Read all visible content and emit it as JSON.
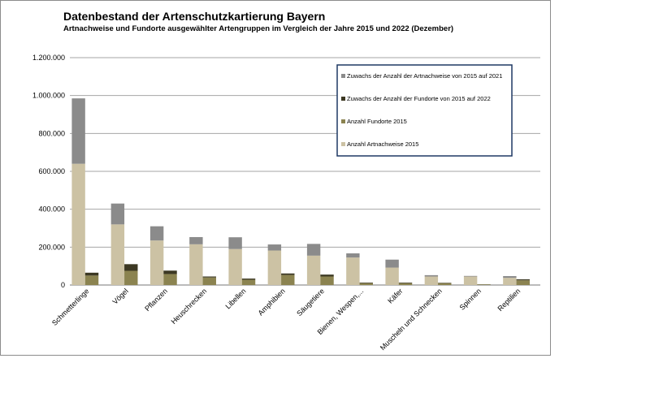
{
  "chart_data": {
    "type": "bar",
    "stacked": true,
    "title": "Datenbestand der Artenschutzkartierung Bayern",
    "subtitle": "Artnachweise und Fundorte ausgewählter Artengruppen im Vergleich der Jahre 2015 und 2022 (Dezember)",
    "xlabel": "",
    "ylabel": "",
    "ylim": [
      0,
      1200000
    ],
    "yticks": [
      "0",
      "200.000",
      "400.000",
      "600.000",
      "800.000",
      "1.000.000",
      "1.200.000"
    ],
    "ytick_values": [
      0,
      200000,
      400000,
      600000,
      800000,
      1000000,
      1200000
    ],
    "grid": true,
    "legend_position": "top-right",
    "categories": [
      "Schmetterlinge",
      "Vögel",
      "Pflanzen",
      "Heuschrecken",
      "Libellen",
      "Amphibien",
      "Säugetiere",
      "Bienen, Wespen,...",
      "Käfer",
      "Muscheln und Schnecken",
      "Spinnen",
      "Reptilien"
    ],
    "groups": [
      {
        "key": "artnachweise",
        "series": [
          {
            "name": "Anzahl Artnachweise 2015",
            "color": "#ccc2a4",
            "values": [
              640000,
              320000,
              235000,
              215000,
              190000,
              182000,
              155000,
              145000,
              92000,
              45000,
              45000,
              38000
            ]
          },
          {
            "name": "Zuwachs der Anzahl der Artnachweise von 2015 auf 2021",
            "color": "#8b8b8b",
            "values": [
              345000,
              110000,
              75000,
              38000,
              62000,
              32000,
              62000,
              22000,
              42000,
              7000,
              3000,
              9000
            ]
          }
        ]
      },
      {
        "key": "fundorte",
        "series": [
          {
            "name": "Anzahl Fundorte 2015",
            "color": "#8b8350",
            "values": [
              50000,
              75000,
              58000,
              40000,
              28000,
              53000,
              45000,
              10000,
              10000,
              10000,
              3000,
              25000
            ]
          },
          {
            "name": "Zuwachs der Anzahl der Fundorte von 2015 auf 2022",
            "color": "#3c3823",
            "values": [
              15000,
              35000,
              18000,
              5000,
              6000,
              8000,
              10000,
              3000,
              3000,
              2000,
              1000,
              5000
            ]
          }
        ]
      }
    ],
    "legend_order": [
      "Zuwachs der Anzahl der Artnachweise von 2015 auf 2021",
      "Zuwachs der Anzahl der Fundorte von 2015 auf 2022",
      "Anzahl Fundorte 2015",
      "Anzahl Artnachweise 2015"
    ]
  }
}
